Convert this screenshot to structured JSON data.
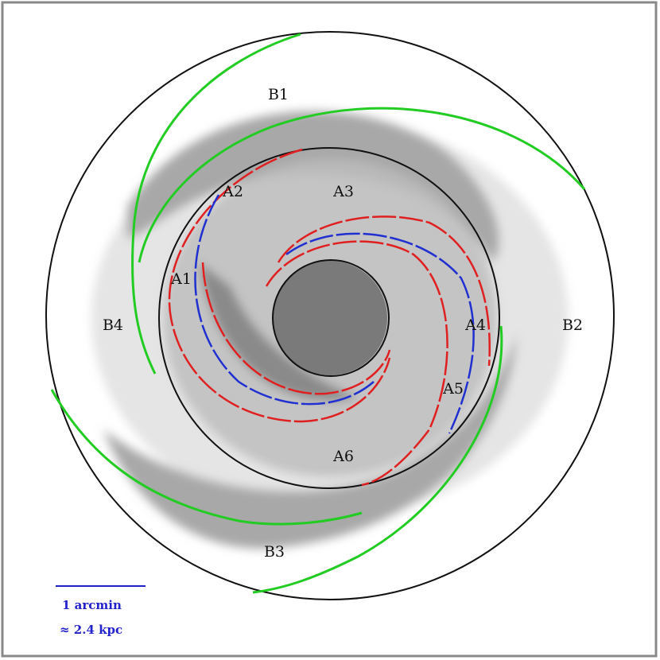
{
  "regions": [
    {
      "label": "B1"
    },
    {
      "label": "B2"
    },
    {
      "label": "B3"
    },
    {
      "label": "B4"
    },
    {
      "label": "A1"
    },
    {
      "label": "A2"
    },
    {
      "label": "A3"
    },
    {
      "label": "A4"
    },
    {
      "label": "A5"
    },
    {
      "label": "A6"
    }
  ],
  "scale_bar": {
    "lines": [
      "1 arcmin",
      "≈ 2.4 kpc"
    ]
  }
}
